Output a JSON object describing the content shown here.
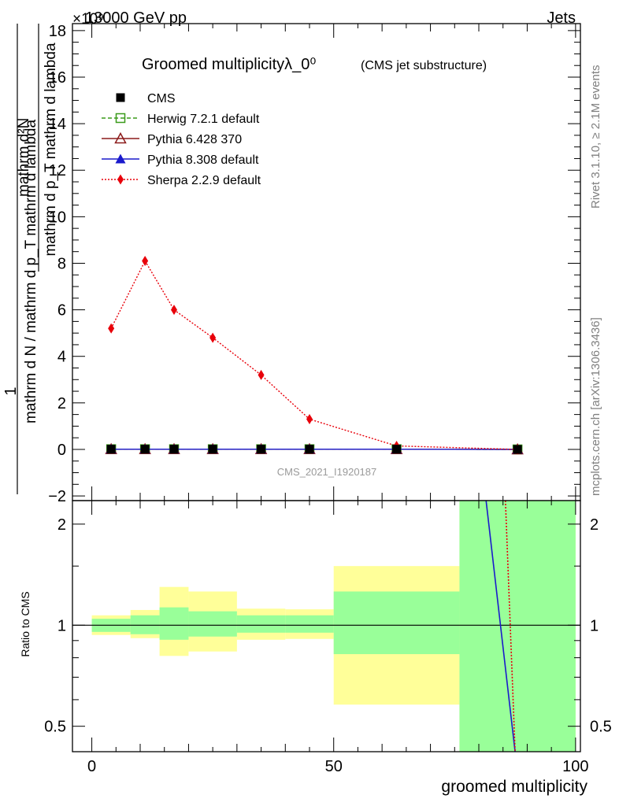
{
  "header": {
    "left": "13000 GeV pp",
    "right": "Jets",
    "exponent": "×10⁹"
  },
  "side_labels": {
    "rivet": "Rivet 3.1.10, ≥ 2.1M events",
    "mcplots": "mcplots.cern.ch [arXiv:1306.3436]"
  },
  "watermark": "CMS_2021_I1920187",
  "chart_data": {
    "type": "line",
    "title": "Groomed multiplicityλ_0⁰",
    "title_sub": "(CMS jet substructure)",
    "ylabel_parts": [
      "1",
      "mathrm d N / mathrm d p_T mathrm d lambda",
      "mathrm d²N",
      "mathrm d p_T mathrm d lambda"
    ],
    "xlabel": "groomed multiplicity",
    "ratio_ylabel": "Ratio to CMS",
    "xlim": [
      -4,
      101
    ],
    "ylim_main": [
      -2.2,
      18.3
    ],
    "ylim_ratio": [
      0.42,
      2.35
    ],
    "x_ticks": [
      0,
      50,
      100
    ],
    "y_ticks_main": [
      -2,
      0,
      2,
      4,
      6,
      8,
      10,
      12,
      14,
      16,
      18
    ],
    "y_ticks_ratio": [
      0.5,
      1,
      2
    ],
    "bin_centers": [
      4,
      11,
      17,
      25,
      35,
      45,
      63,
      88
    ],
    "bin_edges": [
      0,
      8,
      14,
      20,
      30,
      40,
      50,
      76,
      100
    ],
    "series": [
      {
        "name": "CMS",
        "color": "#000000",
        "marker": "square-filled",
        "line": "none",
        "values": [
          0.01,
          0.01,
          0.01,
          0.01,
          0.01,
          0.01,
          0.01,
          0.0
        ]
      },
      {
        "name": "Herwig 7.2.1 default",
        "color": "#3a9a1a",
        "marker": "square-open",
        "line": "dashed",
        "values": [
          0.01,
          0.01,
          0.01,
          0.01,
          0.01,
          0.01,
          0.01,
          0.0
        ]
      },
      {
        "name": "Pythia 6.428 370",
        "color": "#8b1a1a",
        "marker": "triangle-open",
        "line": "solid",
        "values": [
          0.01,
          0.01,
          0.01,
          0.01,
          0.01,
          0.01,
          0.01,
          0.0
        ]
      },
      {
        "name": "Pythia 8.308 default",
        "color": "#1a1acc",
        "marker": "triangle-filled",
        "line": "solid",
        "values": [
          0.01,
          0.01,
          0.01,
          0.01,
          0.01,
          0.01,
          0.01,
          0.0
        ]
      },
      {
        "name": "Sherpa 2.2.9 default",
        "color": "#e8000a",
        "marker": "diamond-filled",
        "line": "dotted",
        "values": [
          5.2,
          8.1,
          6.0,
          4.8,
          3.2,
          1.3,
          0.15,
          0.0
        ]
      }
    ],
    "ratio_bands": {
      "green": [
        [
          0.955,
          1.045
        ],
        [
          0.94,
          1.07
        ],
        [
          0.905,
          1.13
        ],
        [
          0.925,
          1.1
        ],
        [
          0.95,
          1.07
        ],
        [
          0.95,
          1.07
        ],
        [
          0.82,
          1.26
        ],
        [
          0.3,
          2.5
        ]
      ],
      "yellow": [
        [
          0.935,
          1.07
        ],
        [
          0.915,
          1.11
        ],
        [
          0.81,
          1.3
        ],
        [
          0.835,
          1.26
        ],
        [
          0.905,
          1.12
        ],
        [
          0.91,
          1.115
        ],
        [
          0.58,
          1.5
        ],
        [
          0.3,
          2.5
        ]
      ]
    },
    "ratio_lines": [
      {
        "name": "Pythia 8.308 default",
        "color": "#1a1acc",
        "style": "solid",
        "points": [
          [
            81.5,
            2.5
          ],
          [
            87.5,
            0.42
          ]
        ]
      },
      {
        "name": "Sherpa 2.2.9 default",
        "color": "#e8000a",
        "style": "dotted",
        "points": [
          [
            85.5,
            2.5
          ],
          [
            87.5,
            0.42
          ]
        ]
      }
    ]
  }
}
